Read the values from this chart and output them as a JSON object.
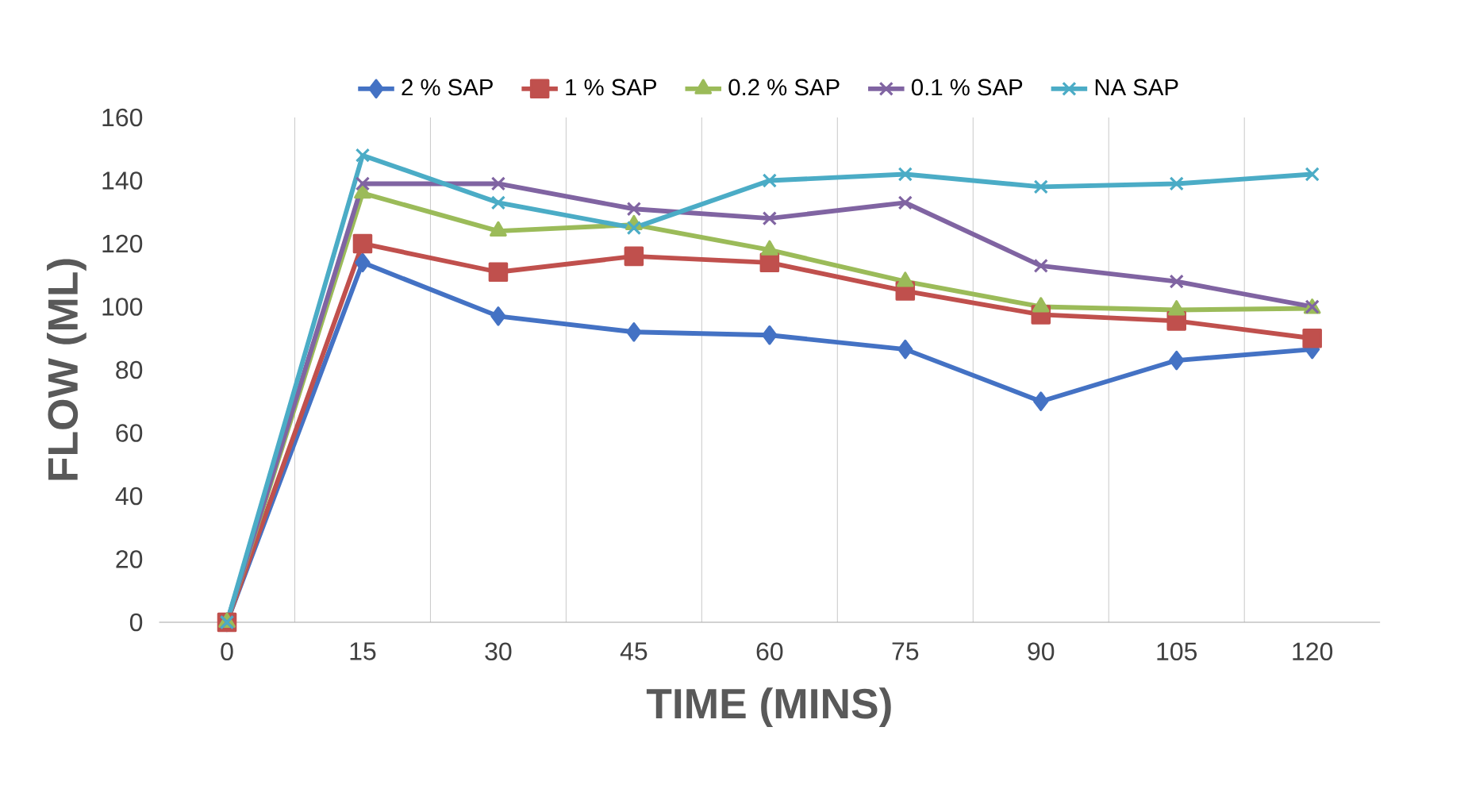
{
  "chart_data": {
    "type": "line",
    "xlabel": "TIME (MINS)",
    "ylabel": "FLOW (ML)",
    "categories": [
      "0",
      "15",
      "30",
      "45",
      "60",
      "75",
      "90",
      "105",
      "120"
    ],
    "series": [
      {
        "name": "2 % SAP",
        "color": "#4472c4",
        "marker": "diamond",
        "values": [
          0,
          114,
          97,
          92,
          91,
          86.5,
          70,
          83,
          86.5
        ]
      },
      {
        "name": "1 % SAP",
        "color": "#c0504d",
        "marker": "square",
        "values": [
          0,
          120,
          111,
          116,
          114,
          105,
          97.5,
          95.5,
          90
        ]
      },
      {
        "name": "0.2 % SAP",
        "color": "#9bbb59",
        "marker": "triangle",
        "values": [
          0,
          136,
          124,
          126,
          118,
          108,
          100,
          99,
          99.5
        ]
      },
      {
        "name": "0.1 % SAP",
        "color": "#8064a2",
        "marker": "cross",
        "values": [
          0,
          139,
          139,
          131,
          128,
          133,
          113,
          108,
          100
        ]
      },
      {
        "name": "NA SAP",
        "color": "#4bacc6",
        "marker": "cross",
        "values": [
          0,
          148,
          133,
          125,
          140,
          142,
          138,
          139,
          142
        ]
      }
    ],
    "ylim": [
      0,
      160
    ],
    "yticks": [
      0,
      20,
      40,
      60,
      80,
      100,
      120,
      140,
      160
    ],
    "grid": "x",
    "legend": "top",
    "line_style": "solid"
  }
}
